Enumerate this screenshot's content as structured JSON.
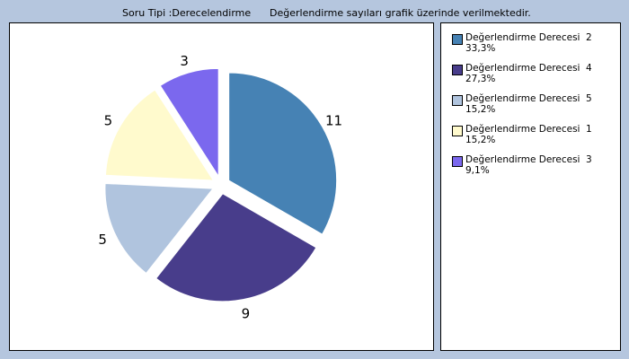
{
  "header": {
    "question_type": "Soru Tipi :Derecelendirme",
    "note": "Değerlendirme sayıları grafik üzerinde verilmektedir."
  },
  "chart_data": {
    "type": "pie",
    "exploded": true,
    "slices": [
      {
        "label": "Değerlendirme Derecesi",
        "code": "2",
        "value": 11,
        "percent": "33,3%",
        "color": "#4682b4"
      },
      {
        "label": "Değerlendirme Derecesi",
        "code": "4",
        "value": 9,
        "percent": "27,3%",
        "color": "#483d8b"
      },
      {
        "label": "Değerlendirme Derecesi",
        "code": "5",
        "value": 5,
        "percent": "15,2%",
        "color": "#b0c4de"
      },
      {
        "label": "Değerlendirme Derecesi",
        "code": "1",
        "value": 5,
        "percent": "15,2%",
        "color": "#fffacd"
      },
      {
        "label": "Değerlendirme Derecesi",
        "code": "3",
        "value": 3,
        "percent": "9,1%",
        "color": "#7b68ee"
      }
    ],
    "legend_placement": "right"
  }
}
